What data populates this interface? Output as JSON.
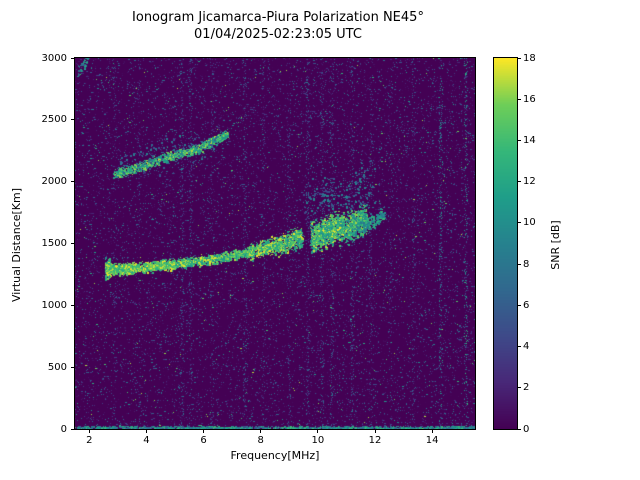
{
  "chart_data": {
    "type": "heatmap",
    "title": "Ionogram Jicamarca-Piura Polarization NE45°",
    "subtitle": "01/04/2025-02:23:05 UTC",
    "xlabel": "Frequency[MHz]",
    "ylabel": "Virtual Distance[Km]",
    "xlim": [
      1.5,
      15.5
    ],
    "ylim": [
      0,
      3000
    ],
    "x_ticks": [
      2,
      4,
      6,
      8,
      10,
      12,
      14
    ],
    "y_ticks": [
      0,
      500,
      1000,
      1500,
      2000,
      2500,
      3000
    ],
    "grid": false,
    "colorbar": {
      "label": "SNR [dB]",
      "ticks": [
        0,
        2,
        4,
        6,
        8,
        10,
        12,
        14,
        16,
        18
      ],
      "vmin": 0,
      "vmax": 18,
      "position": "right"
    },
    "colormap": {
      "name": "viridis",
      "stops": [
        "#440154",
        "#482878",
        "#3e4a89",
        "#31688e",
        "#26828e",
        "#1f9e89",
        "#35b779",
        "#6ece58",
        "#fde725"
      ]
    },
    "noise": {
      "seed": 42,
      "count": 16000,
      "bright_fraction": 0.035
    },
    "stripes": [
      {
        "f": 2.9,
        "n": 150,
        "vmax": 7
      },
      {
        "f": 3.75,
        "n": 100,
        "vmax": 6
      },
      {
        "f": 5.25,
        "n": 300,
        "vmax": 7
      },
      {
        "f": 5.55,
        "n": 260,
        "vmax": 7
      },
      {
        "f": 6.3,
        "n": 140,
        "vmax": 6
      },
      {
        "f": 7.45,
        "n": 240,
        "vmax": 8
      },
      {
        "f": 8.1,
        "n": 140,
        "vmax": 6
      },
      {
        "f": 9.0,
        "n": 140,
        "vmax": 7
      },
      {
        "f": 9.65,
        "n": 280,
        "vmax": 8
      },
      {
        "f": 10.15,
        "n": 260,
        "vmax": 8
      },
      {
        "f": 10.5,
        "n": 220,
        "vmax": 8
      },
      {
        "f": 11.2,
        "n": 240,
        "vmax": 8
      },
      {
        "f": 11.85,
        "n": 180,
        "vmax": 7
      },
      {
        "f": 12.55,
        "n": 140,
        "vmax": 7
      },
      {
        "f": 13.35,
        "n": 140,
        "vmax": 7
      },
      {
        "f": 14.3,
        "n": 320,
        "vmax": 12
      },
      {
        "f": 15.18,
        "n": 300,
        "vmax": 14
      }
    ],
    "echo_traces": [
      {
        "name": "f-layer-start",
        "f": [
          2.55,
          2.75
        ],
        "h": [
          1295,
          1300
        ],
        "spread": 70,
        "n": 250,
        "v": [
          9,
          18
        ]
      },
      {
        "name": "f-layer-1",
        "f": [
          2.6,
          3.6
        ],
        "h": [
          1290,
          1300
        ],
        "spread": 40,
        "n": 850,
        "v": [
          12,
          18
        ]
      },
      {
        "name": "f-layer-2",
        "f": [
          3.6,
          5.0
        ],
        "h": [
          1300,
          1330
        ],
        "spread": 38,
        "n": 750,
        "v": [
          12,
          18
        ]
      },
      {
        "name": "f-layer-3",
        "f": [
          5.0,
          6.5
        ],
        "h": [
          1330,
          1378
        ],
        "spread": 36,
        "n": 550,
        "v": [
          10,
          18
        ]
      },
      {
        "name": "f-layer-4",
        "f": [
          6.5,
          7.6
        ],
        "h": [
          1378,
          1432
        ],
        "spread": 36,
        "n": 420,
        "v": [
          10,
          17
        ]
      },
      {
        "name": "f-layer-5",
        "f": [
          7.6,
          8.6
        ],
        "h": [
          1432,
          1490
        ],
        "spread": 60,
        "n": 520,
        "v": [
          10,
          18
        ]
      },
      {
        "name": "f-layer-6",
        "f": [
          8.6,
          9.45
        ],
        "h": [
          1470,
          1555
        ],
        "spread": 75,
        "n": 600,
        "v": [
          9,
          18
        ]
      },
      {
        "name": "f-layer-blob-1",
        "f": [
          9.75,
          10.9
        ],
        "h": [
          1540,
          1650
        ],
        "spread": 110,
        "n": 1300,
        "v": [
          9,
          18
        ]
      },
      {
        "name": "f-layer-blob-2",
        "f": [
          10.9,
          11.7
        ],
        "h": [
          1620,
          1690
        ],
        "spread": 105,
        "n": 700,
        "v": [
          8,
          17
        ]
      },
      {
        "name": "f-layer-tail",
        "f": [
          11.6,
          12.35
        ],
        "h": [
          1640,
          1730
        ],
        "spread": 60,
        "n": 170,
        "v": [
          7,
          14
        ]
      },
      {
        "name": "second-hop-1",
        "f": [
          2.85,
          4.6
        ],
        "h": [
          2055,
          2185
        ],
        "spread": 36,
        "n": 480,
        "v": [
          9,
          17
        ]
      },
      {
        "name": "second-hop-2",
        "f": [
          4.6,
          5.8
        ],
        "h": [
          2185,
          2265
        ],
        "spread": 33,
        "n": 350,
        "v": [
          9,
          17
        ]
      },
      {
        "name": "second-hop-3",
        "f": [
          5.8,
          6.85
        ],
        "h": [
          2265,
          2385
        ],
        "spread": 33,
        "n": 330,
        "v": [
          9,
          17
        ]
      },
      {
        "name": "second-hop-halo",
        "f": [
          3.0,
          6.5
        ],
        "h": [
          2130,
          2330
        ],
        "spread": 130,
        "n": 200,
        "v": [
          4,
          10
        ]
      },
      {
        "name": "blob-halo",
        "f": [
          9.5,
          12.0
        ],
        "h": [
          1840,
          1960
        ],
        "spread": 160,
        "n": 260,
        "v": [
          4,
          10
        ]
      },
      {
        "name": "corner-speckle",
        "f": [
          1.6,
          1.95
        ],
        "h": [
          2880,
          2990
        ],
        "spread": 60,
        "n": 45,
        "v": [
          6,
          13
        ]
      },
      {
        "name": "ground-line",
        "f": [
          1.5,
          15.5
        ],
        "h": [
          10,
          10
        ],
        "spread": 12,
        "n": 1400,
        "v": [
          5,
          14
        ]
      }
    ]
  }
}
